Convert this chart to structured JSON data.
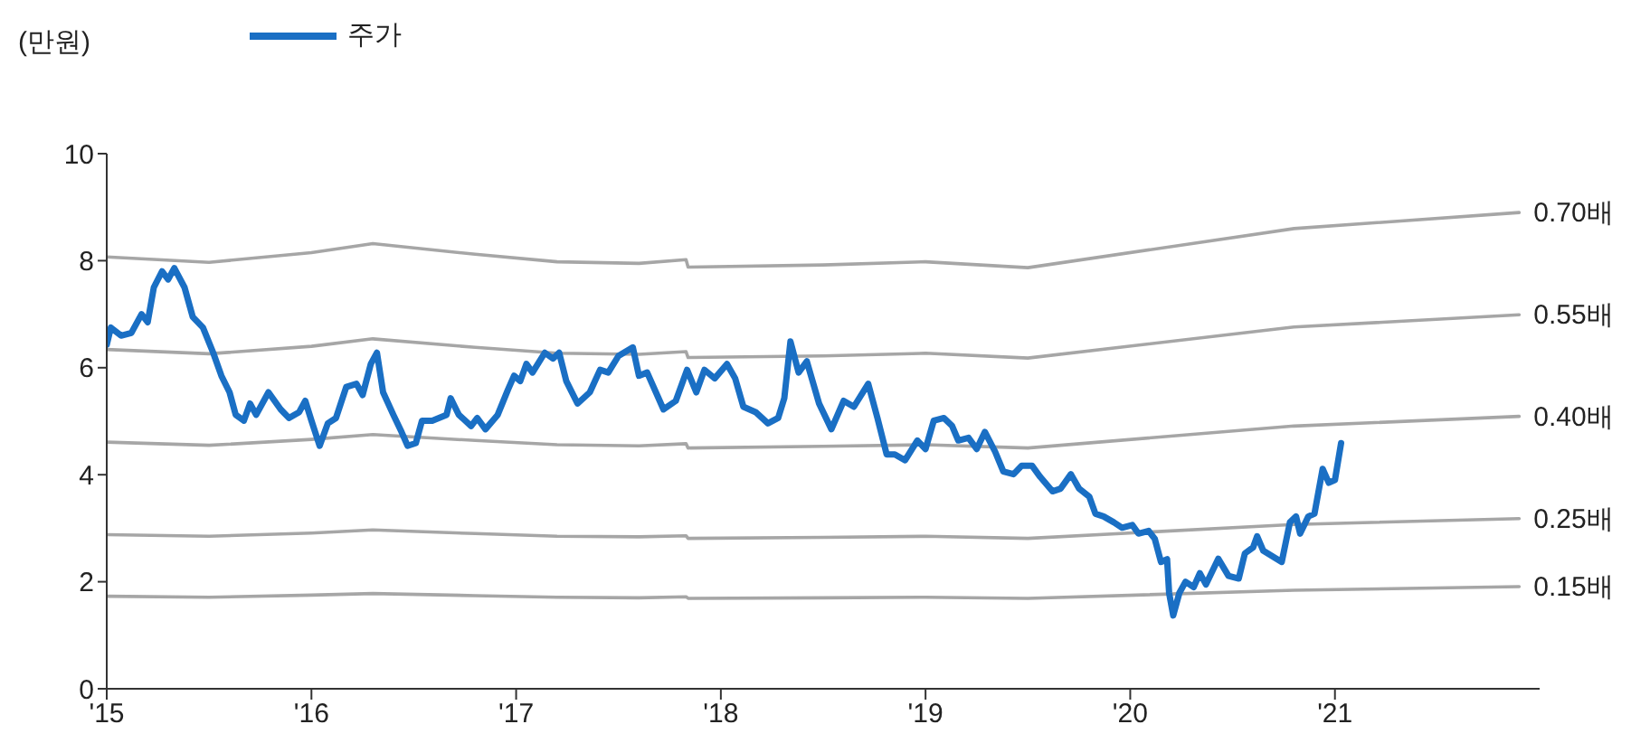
{
  "chart_data": {
    "type": "line",
    "ylabel": "(만원)",
    "legend": "top left",
    "grid": false,
    "marker": "none",
    "line_style": "solid",
    "xlim": [
      2015,
      2022
    ],
    "xticks": [
      {
        "value": 2015,
        "label": "'15"
      },
      {
        "value": 2016,
        "label": "'16"
      },
      {
        "value": 2017,
        "label": "'17"
      },
      {
        "value": 2018,
        "label": "'18"
      },
      {
        "value": 2019,
        "label": "'19"
      },
      {
        "value": 2020,
        "label": "'20"
      },
      {
        "value": 2021,
        "label": "'21"
      }
    ],
    "ylim": [
      0,
      10
    ],
    "yticks": [
      0,
      2,
      4,
      6,
      8,
      10
    ],
    "series": [
      {
        "name": "주가",
        "color": "#1a6fc4",
        "x": [
          2015.0,
          2015.02,
          2015.07,
          2015.12,
          2015.17,
          2015.2,
          2015.23,
          2015.27,
          2015.3,
          2015.33,
          2015.38,
          2015.42,
          2015.47,
          2015.52,
          2015.56,
          2015.6,
          2015.63,
          2015.67,
          2015.7,
          2015.73,
          2015.79,
          2015.85,
          2015.89,
          2015.94,
          2015.97,
          2016.0,
          2016.04,
          2016.08,
          2016.12,
          2016.17,
          2016.22,
          2016.25,
          2016.29,
          2016.32,
          2016.35,
          2016.4,
          2016.44,
          2016.47,
          2016.51,
          2016.54,
          2016.59,
          2016.66,
          2016.68,
          2016.72,
          2016.78,
          2016.81,
          2016.85,
          2016.91,
          2016.96,
          2016.99,
          2017.02,
          2017.05,
          2017.08,
          2017.14,
          2017.18,
          2017.21,
          2017.245,
          2017.3,
          2017.36,
          2017.41,
          2017.45,
          2017.5,
          2017.57,
          2017.6,
          2017.64,
          2017.72,
          2017.78,
          2017.835,
          2017.88,
          2017.92,
          2017.97,
          2018.03,
          2018.07,
          2018.11,
          2018.17,
          2018.23,
          2018.28,
          2018.31,
          2018.34,
          2018.38,
          2018.42,
          2018.48,
          2018.54,
          2018.6,
          2018.65,
          2018.72,
          2018.765,
          2018.81,
          2018.85,
          2018.9,
          2018.96,
          2019.0,
          2019.04,
          2019.09,
          2019.13,
          2019.16,
          2019.21,
          2019.25,
          2019.29,
          2019.34,
          2019.38,
          2019.43,
          2019.47,
          2019.52,
          2019.56,
          2019.62,
          2019.66,
          2019.71,
          2019.75,
          2019.8,
          2019.83,
          2019.87,
          2019.92,
          2019.96,
          2020.01,
          2020.04,
          2020.09,
          2020.12,
          2020.15,
          2020.18,
          2020.19,
          2020.21,
          2020.24,
          2020.27,
          2020.31,
          2020.34,
          2020.37,
          2020.43,
          2020.48,
          2020.53,
          2020.56,
          2020.6,
          2020.62,
          2020.65,
          2020.74,
          2020.78,
          2020.81,
          2020.83,
          2020.87,
          2020.9,
          2020.94,
          2020.97,
          2021.0,
          2021.03
        ],
        "values": [
          6.43,
          6.75,
          6.6,
          6.65,
          7.0,
          6.85,
          7.5,
          7.8,
          7.65,
          7.86,
          7.5,
          6.95,
          6.75,
          6.28,
          5.85,
          5.54,
          5.12,
          5.01,
          5.33,
          5.12,
          5.54,
          5.22,
          5.06,
          5.17,
          5.38,
          5.01,
          4.54,
          4.96,
          5.06,
          5.64,
          5.7,
          5.49,
          6.07,
          6.28,
          5.54,
          5.12,
          4.8,
          4.54,
          4.59,
          5.01,
          5.01,
          5.12,
          5.43,
          5.12,
          4.91,
          5.06,
          4.85,
          5.12,
          5.59,
          5.85,
          5.75,
          6.07,
          5.91,
          6.28,
          6.17,
          6.28,
          5.75,
          5.33,
          5.54,
          5.96,
          5.91,
          6.22,
          6.38,
          5.85,
          5.91,
          5.22,
          5.38,
          5.96,
          5.54,
          5.96,
          5.8,
          6.07,
          5.8,
          5.27,
          5.17,
          4.96,
          5.06,
          5.43,
          6.49,
          5.91,
          6.12,
          5.33,
          4.85,
          5.38,
          5.27,
          5.7,
          5.06,
          4.38,
          4.38,
          4.27,
          4.64,
          4.48,
          5.01,
          5.06,
          4.91,
          4.64,
          4.69,
          4.48,
          4.8,
          4.43,
          4.06,
          4.01,
          4.17,
          4.17,
          3.96,
          3.69,
          3.74,
          4.01,
          3.74,
          3.59,
          3.27,
          3.22,
          3.11,
          3.01,
          3.06,
          2.9,
          2.95,
          2.8,
          2.37,
          2.42,
          1.79,
          1.37,
          1.79,
          2.0,
          1.9,
          2.16,
          1.95,
          2.43,
          2.11,
          2.06,
          2.53,
          2.64,
          2.85,
          2.58,
          2.37,
          3.11,
          3.22,
          2.9,
          3.22,
          3.27,
          4.11,
          3.85,
          3.9,
          4.59
        ]
      },
      {
        "name": "0.70배",
        "color": "#a6a6a6",
        "x": [
          2015.0,
          2015.5,
          2016.0,
          2016.3,
          2016.8,
          2017.2,
          2017.6,
          2017.83,
          2017.84,
          2018.5,
          2019.0,
          2019.5,
          2020.8,
          2021.9
        ],
        "values": [
          8.07,
          7.97,
          8.15,
          8.32,
          8.12,
          7.98,
          7.95,
          8.02,
          7.88,
          7.92,
          7.98,
          7.87,
          8.6,
          8.9
        ]
      },
      {
        "name": "0.55배",
        "color": "#a6a6a6",
        "x": [
          2015.0,
          2015.5,
          2016.0,
          2016.3,
          2016.8,
          2017.2,
          2017.6,
          2017.83,
          2017.84,
          2018.5,
          2019.0,
          2019.5,
          2020.8,
          2021.9
        ],
        "values": [
          6.34,
          6.26,
          6.4,
          6.54,
          6.38,
          6.27,
          6.25,
          6.3,
          6.19,
          6.22,
          6.27,
          6.18,
          6.76,
          6.99
        ]
      },
      {
        "name": "0.40배",
        "color": "#a6a6a6",
        "x": [
          2015.0,
          2015.5,
          2016.0,
          2016.3,
          2016.8,
          2017.2,
          2017.6,
          2017.83,
          2017.84,
          2018.5,
          2019.0,
          2019.5,
          2020.8,
          2021.9
        ],
        "values": [
          4.61,
          4.55,
          4.66,
          4.75,
          4.64,
          4.56,
          4.54,
          4.58,
          4.5,
          4.53,
          4.56,
          4.5,
          4.91,
          5.09
        ]
      },
      {
        "name": "0.25배",
        "color": "#a6a6a6",
        "x": [
          2015.0,
          2015.5,
          2016.0,
          2016.3,
          2016.8,
          2017.2,
          2017.6,
          2017.83,
          2017.84,
          2018.5,
          2019.0,
          2019.5,
          2020.8,
          2021.9
        ],
        "values": [
          2.88,
          2.85,
          2.91,
          2.97,
          2.9,
          2.85,
          2.84,
          2.86,
          2.81,
          2.83,
          2.85,
          2.81,
          3.07,
          3.18
        ]
      },
      {
        "name": "0.15배",
        "color": "#a6a6a6",
        "x": [
          2015.0,
          2015.5,
          2016.0,
          2016.3,
          2016.8,
          2017.2,
          2017.6,
          2017.83,
          2017.84,
          2018.5,
          2019.0,
          2019.5,
          2020.8,
          2021.9
        ],
        "values": [
          1.73,
          1.71,
          1.75,
          1.78,
          1.74,
          1.71,
          1.7,
          1.72,
          1.69,
          1.7,
          1.71,
          1.69,
          1.84,
          1.91
        ]
      }
    ]
  }
}
